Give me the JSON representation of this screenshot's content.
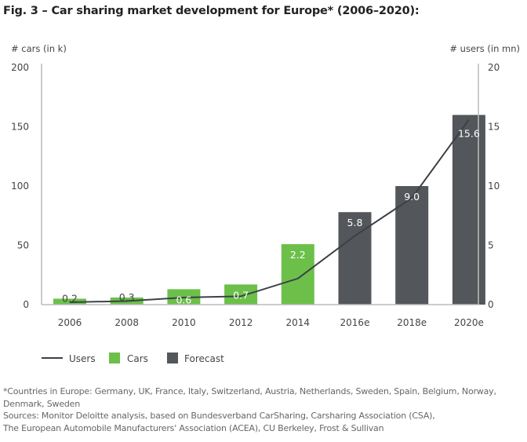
{
  "chart_data": {
    "type": "bar",
    "title": "Fig. 3 – Car sharing market development for Europe* (2006–2020):",
    "ylabel_left": "# cars (in k)",
    "ylabel_right": "# users (in mn)",
    "ylim_left": [
      0,
      200
    ],
    "ylim_right": [
      0,
      20
    ],
    "yticks_left": [
      "0",
      "50",
      "100",
      "150",
      "200"
    ],
    "yticks_right": [
      "0",
      "5",
      "10",
      "15",
      "20"
    ],
    "categories": [
      "2006",
      "2008",
      "2010",
      "2012",
      "2014",
      "2016e",
      "2018e",
      "2020e"
    ],
    "series": [
      {
        "name": "Cars",
        "type": "bar",
        "axis": "left",
        "values": [
          5,
          6,
          13,
          17,
          51,
          78,
          100,
          160
        ],
        "forecast": [
          false,
          false,
          false,
          false,
          false,
          true,
          true,
          true
        ]
      },
      {
        "name": "Users",
        "type": "line",
        "axis": "right",
        "values": [
          0.2,
          0.3,
          0.6,
          0.7,
          2.2,
          5.8,
          9.0,
          15.6
        ]
      }
    ],
    "data_labels": [
      "0.2",
      "0.3",
      "0.6",
      "0.7",
      "2.2",
      "5.8",
      "9.0",
      "15.6"
    ],
    "legend": [
      {
        "name": "Users",
        "kind": "line",
        "color": "#3c4148"
      },
      {
        "name": "Cars",
        "kind": "box",
        "color": "#6cc04a"
      },
      {
        "name": "Forecast",
        "kind": "box",
        "color": "#53565a"
      }
    ],
    "legend_position": "bottom-left",
    "grid": false,
    "colors": {
      "cars": "#6cc04a",
      "forecast": "#53565a",
      "users": "#3c4148",
      "axis": "#bbbbbb"
    }
  },
  "notes": {
    "countries": "*Countries in Europe: Germany, UK, France, Italy, Switzerland, Austria, Netherlands, Sweden, Spain, Belgium, Norway, Denmark, Sweden",
    "sources_1": "Sources: Monitor Deloitte analysis, based on Bundesverband CarSharing, Carsharing Association (CSA),",
    "sources_2": "The European Automobile Manufacturers' Association (ACEA), CU Berkeley, Frost & Sullivan"
  }
}
